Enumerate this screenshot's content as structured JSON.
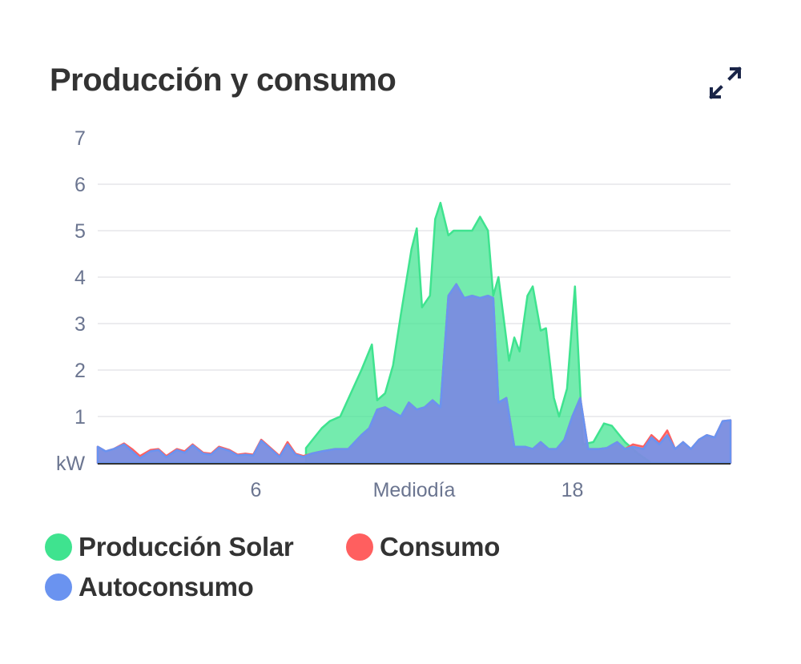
{
  "card": {
    "title": "Producción y consumo",
    "expand_icon": "expand-arrows-icon"
  },
  "chart_data": {
    "type": "area",
    "title": "Producción y consumo",
    "ylabel": "kW",
    "ylim": [
      0,
      7
    ],
    "yticks": [
      "7",
      "6",
      "5",
      "4",
      "3",
      "2",
      "1"
    ],
    "xlim": [
      0,
      24
    ],
    "xticks": [
      {
        "value": 6,
        "label": "6"
      },
      {
        "value": 12,
        "label": "Mediodía"
      },
      {
        "value": 18,
        "label": "18"
      }
    ],
    "grid": true,
    "legend_position": "bottom-left",
    "series": [
      {
        "name": "Producción Solar",
        "color": "#3fe38f",
        "points": [
          [
            7.9,
            0.32
          ],
          [
            8.5,
            0.75
          ],
          [
            8.8,
            0.9
          ],
          [
            9.2,
            1.0
          ],
          [
            9.6,
            1.5
          ],
          [
            10.0,
            2.0
          ],
          [
            10.4,
            2.55
          ],
          [
            10.6,
            1.35
          ],
          [
            10.9,
            1.5
          ],
          [
            11.2,
            2.1
          ],
          [
            11.5,
            3.2
          ],
          [
            11.9,
            4.6
          ],
          [
            12.1,
            5.05
          ],
          [
            12.3,
            3.35
          ],
          [
            12.6,
            3.6
          ],
          [
            12.8,
            5.25
          ],
          [
            13.0,
            5.6
          ],
          [
            13.3,
            4.9
          ],
          [
            13.5,
            5.0
          ],
          [
            14.0,
            5.0
          ],
          [
            14.2,
            5.0
          ],
          [
            14.5,
            5.3
          ],
          [
            14.8,
            5.0
          ],
          [
            15.0,
            3.6
          ],
          [
            15.2,
            4.0
          ],
          [
            15.6,
            2.2
          ],
          [
            15.8,
            2.7
          ],
          [
            16.0,
            2.4
          ],
          [
            16.3,
            3.6
          ],
          [
            16.5,
            3.8
          ],
          [
            16.8,
            2.85
          ],
          [
            17.0,
            2.9
          ],
          [
            17.3,
            1.4
          ],
          [
            17.5,
            1.0
          ],
          [
            17.8,
            1.6
          ],
          [
            18.1,
            3.8
          ],
          [
            18.4,
            0.4
          ],
          [
            18.8,
            0.45
          ],
          [
            19.2,
            0.85
          ],
          [
            19.5,
            0.8
          ],
          [
            20.0,
            0.45
          ],
          [
            20.5,
            0.2
          ],
          [
            21.0,
            0.0
          ]
        ]
      },
      {
        "name": "Consumo",
        "color": "#ff5f5f",
        "points": [
          [
            0.0,
            0.35
          ],
          [
            0.3,
            0.25
          ],
          [
            0.6,
            0.3
          ],
          [
            1.0,
            0.42
          ],
          [
            1.3,
            0.3
          ],
          [
            1.6,
            0.15
          ],
          [
            2.0,
            0.28
          ],
          [
            2.3,
            0.3
          ],
          [
            2.6,
            0.15
          ],
          [
            3.0,
            0.3
          ],
          [
            3.3,
            0.25
          ],
          [
            3.6,
            0.4
          ],
          [
            4.0,
            0.22
          ],
          [
            4.3,
            0.2
          ],
          [
            4.6,
            0.35
          ],
          [
            5.0,
            0.28
          ],
          [
            5.3,
            0.18
          ],
          [
            5.6,
            0.2
          ],
          [
            5.9,
            0.18
          ],
          [
            6.2,
            0.5
          ],
          [
            6.5,
            0.35
          ],
          [
            6.9,
            0.15
          ],
          [
            7.2,
            0.45
          ],
          [
            7.5,
            0.2
          ],
          [
            7.8,
            0.15
          ],
          [
            8.1,
            0.2
          ],
          [
            8.5,
            0.25
          ],
          [
            9.0,
            0.3
          ],
          [
            9.5,
            0.3
          ],
          [
            10.0,
            0.6
          ],
          [
            10.3,
            0.75
          ],
          [
            10.6,
            1.15
          ],
          [
            10.9,
            1.2
          ],
          [
            11.2,
            1.1
          ],
          [
            11.5,
            1.0
          ],
          [
            11.8,
            1.3
          ],
          [
            12.1,
            1.15
          ],
          [
            12.4,
            1.2
          ],
          [
            12.7,
            1.35
          ],
          [
            13.0,
            1.2
          ],
          [
            13.3,
            3.6
          ],
          [
            13.6,
            3.85
          ],
          [
            13.9,
            3.55
          ],
          [
            14.2,
            3.6
          ],
          [
            14.5,
            3.55
          ],
          [
            14.8,
            3.6
          ],
          [
            15.0,
            3.55
          ],
          [
            15.2,
            1.3
          ],
          [
            15.5,
            1.4
          ],
          [
            15.8,
            0.35
          ],
          [
            16.2,
            0.35
          ],
          [
            16.5,
            0.3
          ],
          [
            16.8,
            0.45
          ],
          [
            17.1,
            0.3
          ],
          [
            17.4,
            0.3
          ],
          [
            17.7,
            0.5
          ],
          [
            18.0,
            1.0
          ],
          [
            18.3,
            1.4
          ],
          [
            18.6,
            0.3
          ],
          [
            19.0,
            0.3
          ],
          [
            19.3,
            0.32
          ],
          [
            19.7,
            0.45
          ],
          [
            20.0,
            0.3
          ],
          [
            20.3,
            0.4
          ],
          [
            20.7,
            0.35
          ],
          [
            21.0,
            0.6
          ],
          [
            21.3,
            0.45
          ],
          [
            21.6,
            0.7
          ],
          [
            21.9,
            0.3
          ],
          [
            22.2,
            0.45
          ],
          [
            22.5,
            0.3
          ],
          [
            22.8,
            0.5
          ],
          [
            23.1,
            0.6
          ],
          [
            23.4,
            0.55
          ],
          [
            23.7,
            0.9
          ],
          [
            24.0,
            0.92
          ]
        ]
      },
      {
        "name": "Autoconsumo",
        "color": "#6a93f0",
        "points": [
          [
            0.0,
            0.35
          ],
          [
            0.3,
            0.25
          ],
          [
            0.6,
            0.3
          ],
          [
            1.0,
            0.4
          ],
          [
            1.3,
            0.25
          ],
          [
            1.6,
            0.1
          ],
          [
            2.0,
            0.25
          ],
          [
            2.3,
            0.28
          ],
          [
            2.6,
            0.12
          ],
          [
            3.0,
            0.28
          ],
          [
            3.3,
            0.22
          ],
          [
            3.6,
            0.38
          ],
          [
            4.0,
            0.2
          ],
          [
            4.3,
            0.18
          ],
          [
            4.6,
            0.33
          ],
          [
            5.0,
            0.26
          ],
          [
            5.3,
            0.16
          ],
          [
            5.6,
            0.18
          ],
          [
            5.9,
            0.16
          ],
          [
            6.2,
            0.48
          ],
          [
            6.5,
            0.33
          ],
          [
            6.9,
            0.13
          ],
          [
            7.2,
            0.4
          ],
          [
            7.5,
            0.18
          ],
          [
            7.8,
            0.13
          ],
          [
            8.1,
            0.2
          ],
          [
            8.5,
            0.25
          ],
          [
            9.0,
            0.3
          ],
          [
            9.5,
            0.3
          ],
          [
            10.0,
            0.6
          ],
          [
            10.3,
            0.75
          ],
          [
            10.6,
            1.15
          ],
          [
            10.9,
            1.2
          ],
          [
            11.2,
            1.1
          ],
          [
            11.5,
            1.0
          ],
          [
            11.8,
            1.3
          ],
          [
            12.1,
            1.15
          ],
          [
            12.4,
            1.2
          ],
          [
            12.7,
            1.35
          ],
          [
            13.0,
            1.2
          ],
          [
            13.3,
            3.6
          ],
          [
            13.6,
            3.85
          ],
          [
            13.9,
            3.55
          ],
          [
            14.2,
            3.6
          ],
          [
            14.5,
            3.55
          ],
          [
            14.8,
            3.6
          ],
          [
            15.0,
            3.55
          ],
          [
            15.2,
            1.3
          ],
          [
            15.5,
            1.4
          ],
          [
            15.8,
            0.35
          ],
          [
            16.2,
            0.35
          ],
          [
            16.5,
            0.3
          ],
          [
            16.8,
            0.45
          ],
          [
            17.1,
            0.3
          ],
          [
            17.4,
            0.3
          ],
          [
            17.7,
            0.5
          ],
          [
            18.0,
            1.0
          ],
          [
            18.3,
            1.4
          ],
          [
            18.6,
            0.3
          ],
          [
            19.0,
            0.3
          ],
          [
            19.3,
            0.32
          ],
          [
            19.7,
            0.45
          ],
          [
            20.0,
            0.3
          ],
          [
            20.3,
            0.35
          ],
          [
            20.7,
            0.3
          ],
          [
            21.0,
            0.55
          ],
          [
            21.3,
            0.4
          ],
          [
            21.6,
            0.6
          ],
          [
            21.9,
            0.3
          ],
          [
            22.2,
            0.45
          ],
          [
            22.5,
            0.3
          ],
          [
            22.8,
            0.5
          ],
          [
            23.1,
            0.6
          ],
          [
            23.4,
            0.55
          ],
          [
            23.7,
            0.9
          ],
          [
            24.0,
            0.92
          ]
        ]
      }
    ]
  },
  "legend": {
    "items": [
      {
        "label": "Producción Solar",
        "color": "#3fe38f"
      },
      {
        "label": "Consumo",
        "color": "#ff5f5f"
      },
      {
        "label": "Autoconsumo",
        "color": "#6a93f0"
      }
    ]
  }
}
